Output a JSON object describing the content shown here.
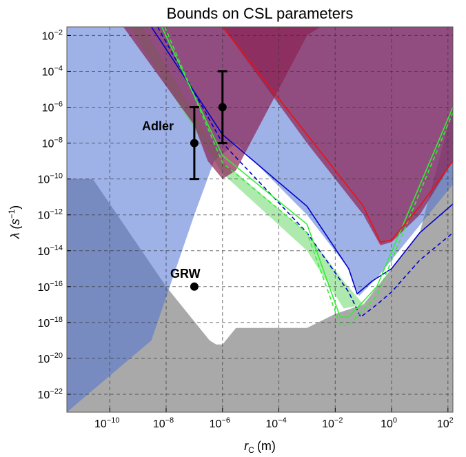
{
  "chart_data": {
    "type": "area",
    "title": "Bounds on CSL parameters",
    "xlabel_main": "r",
    "xlabel_sub": "C",
    "xlabel_unit": "(m)",
    "ylabel_main": "λ (s",
    "ylabel_sup": "−1",
    "ylabel_close": ")",
    "x_scale": "log",
    "y_scale": "log",
    "xlim": [
      3e-12,
      150
    ],
    "ylim": [
      1e-23,
      0.03
    ],
    "grid": true,
    "x_ticks": [
      {
        "value": 1e-10,
        "base": "10",
        "exp": "−10"
      },
      {
        "value": 1e-08,
        "base": "10",
        "exp": "−8"
      },
      {
        "value": 1e-06,
        "base": "10",
        "exp": "−6"
      },
      {
        "value": 0.0001,
        "base": "10",
        "exp": "−4"
      },
      {
        "value": 0.01,
        "base": "10",
        "exp": "−2"
      },
      {
        "value": 1,
        "base": "10",
        "exp": "0"
      },
      {
        "value": 100,
        "base": "10",
        "exp": "2"
      }
    ],
    "y_ticks": [
      {
        "value": 0.01,
        "base": "10",
        "exp": "−2"
      },
      {
        "value": 0.0001,
        "base": "10",
        "exp": "−4"
      },
      {
        "value": 1e-06,
        "base": "10",
        "exp": "−6"
      },
      {
        "value": 1e-08,
        "base": "10",
        "exp": "−8"
      },
      {
        "value": 1e-10,
        "base": "10",
        "exp": "−10"
      },
      {
        "value": 1e-12,
        "base": "10",
        "exp": "−12"
      },
      {
        "value": 1e-14,
        "base": "10",
        "exp": "−14"
      },
      {
        "value": 1e-16,
        "base": "10",
        "exp": "−16"
      },
      {
        "value": 1e-18,
        "base": "10",
        "exp": "−18"
      },
      {
        "value": 1e-20,
        "base": "10",
        "exp": "−20"
      },
      {
        "value": 1e-22,
        "base": "10",
        "exp": "−22"
      }
    ],
    "regions": [
      {
        "id": "gray-lower-bound",
        "color": "#8c8c8c",
        "opacity": 0.75,
        "boundary": [
          [
            3e-12,
            1e-10
          ],
          [
            2.5e-11,
            1e-10
          ],
          [
            1e-08,
            1e-16
          ],
          [
            3.5e-07,
            1e-19
          ],
          [
            6e-07,
            6e-20
          ],
          [
            1e-06,
            6e-20
          ],
          [
            3e-06,
            5e-19
          ],
          [
            0.001,
            5e-19
          ],
          [
            0.01,
            3e-18
          ],
          [
            0.1,
            1e-17
          ],
          [
            1,
            1e-15
          ],
          [
            10,
            1e-13
          ],
          [
            150,
            1e-06
          ]
        ],
        "fill_to": "bottom"
      },
      {
        "id": "blue-excluded",
        "color": "#4f72d6",
        "opacity": 0.55,
        "boundary": [
          [
            3e-12,
            1e-23
          ],
          [
            3e-09,
            1e-19
          ],
          [
            1e-07,
            1e-12
          ],
          [
            5e-07,
            1e-09
          ],
          [
            3e-06,
            1e-08
          ],
          [
            0.001,
            1e-12
          ],
          [
            0.03,
            1e-15
          ],
          [
            0.07,
            3e-17
          ],
          [
            0.3,
            3e-16
          ],
          [
            150,
            5e-11
          ]
        ],
        "fill_to": "top"
      },
      {
        "id": "green-band",
        "color": "#5dd65d",
        "opacity": 0.5,
        "upper": [
          [
            1.5e-09,
            0.03
          ],
          [
            1e-06,
            1e-09
          ],
          [
            0.001,
            1e-13
          ],
          [
            0.02,
            2e-16
          ],
          [
            0.1,
            1e-17
          ]
        ],
        "lower": [
          [
            5e-10,
            0.03
          ],
          [
            1e-06,
            2e-10
          ],
          [
            0.001,
            1e-14
          ],
          [
            0.02,
            6e-18
          ],
          [
            0.1,
            1e-17
          ]
        ]
      },
      {
        "id": "maroon-excluded",
        "color": "#8b2252",
        "opacity": 0.7,
        "boundary": [
          [
            3e-10,
            0.03
          ],
          [
            1e-07,
            1e-07
          ],
          [
            3e-07,
            1e-09
          ],
          [
            1e-06,
            1e-10
          ],
          [
            3e-06,
            3e-10
          ],
          [
            0.001,
            0.01
          ],
          [
            0.003,
            0.03
          ]
        ],
        "fill_to": "top"
      },
      {
        "id": "maroon-large",
        "color": "#8b2252",
        "opacity": 0.7,
        "boundary": [
          [
            1e-06,
            0.03
          ],
          [
            0.001,
            1e-08
          ],
          [
            0.1,
            1e-12
          ],
          [
            0.4,
            2e-14
          ],
          [
            1,
            3e-14
          ],
          [
            10,
            1e-12
          ],
          [
            150,
            1e-09
          ]
        ],
        "fill_to": "top"
      }
    ],
    "curves": [
      {
        "id": "blue-solid",
        "color": "#0000cc",
        "dash": false,
        "points": [
          [
            3e-09,
            0.03
          ],
          [
            1e-06,
            3e-08
          ],
          [
            0.001,
            3e-12
          ],
          [
            0.03,
            1e-15
          ],
          [
            0.06,
            4e-17
          ],
          [
            0.2,
            2e-16
          ],
          [
            1,
            1e-15
          ],
          [
            10,
            1e-13
          ],
          [
            150,
            4e-12
          ]
        ]
      },
      {
        "id": "blue-dashed",
        "color": "#0000cc",
        "dash": true,
        "points": [
          [
            5e-09,
            0.03
          ],
          [
            1e-06,
            1e-08
          ],
          [
            0.001,
            1e-13
          ],
          [
            0.03,
            5e-17
          ],
          [
            0.08,
            2e-18
          ],
          [
            0.3,
            1e-17
          ],
          [
            1,
            5e-17
          ],
          [
            10,
            3e-15
          ],
          [
            150,
            1e-13
          ]
        ]
      },
      {
        "id": "green-solid",
        "color": "#33ee33",
        "dash": false,
        "points": [
          [
            7e-09,
            0.03
          ],
          [
            1e-06,
            2e-09
          ],
          [
            0.001,
            3e-13
          ],
          [
            0.015,
            2e-18
          ],
          [
            0.03,
            2e-18
          ],
          [
            0.3,
            1e-16
          ],
          [
            150,
            1e-06
          ]
        ]
      },
      {
        "id": "green-dashed",
        "color": "#33ee33",
        "dash": true,
        "points": [
          [
            9e-09,
            0.03
          ],
          [
            1e-06,
            8e-10
          ],
          [
            0.001,
            1e-13
          ],
          [
            0.015,
            7e-19
          ],
          [
            0.03,
            7e-19
          ],
          [
            0.3,
            3e-17
          ],
          [
            150,
            5e-07
          ]
        ]
      },
      {
        "id": "red-solid",
        "color": "#ee1111",
        "dash": false,
        "points": [
          [
            1e-06,
            0.03
          ],
          [
            0.001,
            3e-08
          ],
          [
            0.1,
            3e-12
          ],
          [
            0.4,
            3e-14
          ],
          [
            1,
            4e-14
          ],
          [
            10,
            3e-12
          ],
          [
            150,
            1e-09
          ]
        ]
      }
    ],
    "points": [
      {
        "name": "GRW",
        "x": 1e-07,
        "y": 1e-16
      },
      {
        "name": "Adler",
        "x": 1e-07,
        "y": 1e-08,
        "ymin": 1e-10,
        "ymax": 1e-06
      },
      {
        "name": "",
        "x": 1e-06,
        "y": 1e-06,
        "ymin": 1e-08,
        "ymax": 0.0001
      }
    ],
    "annotations": [
      {
        "text": "Adler"
      },
      {
        "text": "GRW"
      }
    ]
  }
}
